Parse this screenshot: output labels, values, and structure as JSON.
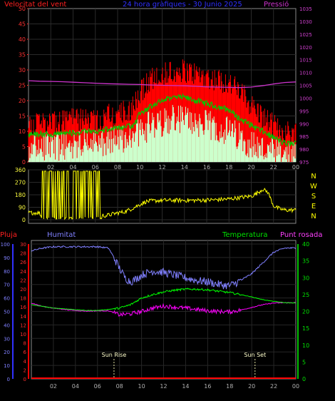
{
  "header": {
    "title": "24 hora gràfiques - 30 Junio 2025",
    "left_label": "Velocitat del vent",
    "right_label": "Pressió"
  },
  "colors": {
    "wind_max": "#ff0000",
    "wind_avg": "#00c800",
    "wind_min": "#ccffcc",
    "pressure": "#cc33cc",
    "direction": "#ffff00",
    "humidity": "#8080ff",
    "temperature": "#00ff00",
    "dewpoint": "#ff00ff",
    "rain": "#ff0000",
    "axis_left": "#ff0000",
    "axis_right": "#cc00cc",
    "axis_dir": "#ffff00",
    "axis_hum": "#3030ff",
    "axis_temp": "#00c000"
  },
  "chart_data": [
    {
      "type": "line",
      "name": "wind-pressure",
      "x_ticks": [
        "02",
        "04",
        "06",
        "08",
        "10",
        "12",
        "14",
        "16",
        "18",
        "20",
        "22",
        "00"
      ],
      "y_left": {
        "label": "Velocitat del vent",
        "ticks": [
          0,
          5,
          10,
          15,
          20,
          25,
          30,
          35,
          40,
          45,
          50
        ],
        "range": [
          0,
          50
        ]
      },
      "y_right": {
        "label": "Pressió",
        "ticks": [
          975,
          980,
          985,
          990,
          995,
          1000,
          1005,
          1010,
          1015,
          1020,
          1025,
          1030,
          1035
        ],
        "range": [
          975,
          1035
        ]
      },
      "pressure_points": [
        [
          0,
          1006.8
        ],
        [
          1,
          1006.6
        ],
        [
          2,
          1006.5
        ],
        [
          3,
          1006.4
        ],
        [
          4,
          1006.2
        ],
        [
          5,
          1006.0
        ],
        [
          6,
          1005.8
        ],
        [
          7,
          1005.6
        ],
        [
          8,
          1005.5
        ],
        [
          9,
          1005.4
        ],
        [
          10,
          1005.3
        ],
        [
          11,
          1005.1
        ],
        [
          12,
          1005.0
        ],
        [
          13,
          1004.9
        ],
        [
          14,
          1004.8
        ],
        [
          15,
          1004.6
        ],
        [
          16,
          1004.4
        ],
        [
          17,
          1004.3
        ],
        [
          18,
          1004.2
        ],
        [
          19,
          1004.1
        ],
        [
          20,
          1004.3
        ],
        [
          21,
          1004.8
        ],
        [
          22,
          1005.5
        ],
        [
          23,
          1006.1
        ],
        [
          24,
          1006.3
        ]
      ],
      "wind_max_profile": [
        [
          0,
          11
        ],
        [
          2,
          12
        ],
        [
          4,
          13
        ],
        [
          6,
          13
        ],
        [
          8,
          15
        ],
        [
          9.5,
          17
        ],
        [
          10,
          22
        ],
        [
          11,
          26
        ],
        [
          12,
          28
        ],
        [
          13,
          29
        ],
        [
          14,
          29
        ],
        [
          15,
          28
        ],
        [
          16,
          27
        ],
        [
          17,
          26
        ],
        [
          18,
          25
        ],
        [
          19,
          22
        ],
        [
          20,
          18
        ],
        [
          21,
          14
        ],
        [
          22,
          11
        ],
        [
          23,
          9
        ],
        [
          24,
          9
        ]
      ],
      "wind_avg_profile": [
        [
          0,
          9
        ],
        [
          2,
          9
        ],
        [
          4,
          9.5
        ],
        [
          6,
          10
        ],
        [
          8,
          11
        ],
        [
          9.5,
          12
        ],
        [
          10,
          16
        ],
        [
          11,
          18
        ],
        [
          12,
          20
        ],
        [
          13,
          21
        ],
        [
          14,
          21
        ],
        [
          15,
          20
        ],
        [
          16,
          19
        ],
        [
          17,
          18
        ],
        [
          18,
          17
        ],
        [
          19,
          14
        ],
        [
          20,
          12
        ],
        [
          21,
          10
        ],
        [
          22,
          8
        ],
        [
          23,
          6
        ],
        [
          24,
          6
        ]
      ],
      "wind_min_profile": [
        [
          0,
          5
        ],
        [
          2,
          5
        ],
        [
          4,
          5.5
        ],
        [
          6,
          6
        ],
        [
          8,
          7
        ],
        [
          9.5,
          8
        ],
        [
          10,
          10
        ],
        [
          11,
          12
        ],
        [
          12,
          13
        ],
        [
          13,
          14
        ],
        [
          14,
          14
        ],
        [
          15,
          13
        ],
        [
          16,
          12
        ],
        [
          17,
          11
        ],
        [
          18,
          10
        ],
        [
          19,
          8
        ],
        [
          20,
          6
        ],
        [
          21,
          4
        ],
        [
          22,
          3
        ],
        [
          23,
          2
        ],
        [
          24,
          2
        ]
      ]
    },
    {
      "type": "line",
      "name": "wind-direction",
      "y_ticks": [
        0,
        90,
        180,
        270,
        360
      ],
      "y_range": [
        0,
        360
      ],
      "compass_labels": [
        "N",
        "W",
        "S",
        "E",
        "N"
      ],
      "points": [
        [
          0,
          50
        ],
        [
          1,
          50
        ],
        [
          1.2,
          10
        ],
        [
          1.5,
          10
        ],
        [
          1.7,
          330
        ],
        [
          2,
          340
        ],
        [
          2.2,
          10
        ],
        [
          2.5,
          350
        ],
        [
          3,
          20
        ],
        [
          3.5,
          350
        ],
        [
          4,
          350
        ],
        [
          4.4,
          10
        ],
        [
          4.6,
          355
        ],
        [
          5,
          20
        ],
        [
          5.2,
          350
        ],
        [
          5.6,
          10
        ],
        [
          6,
          350
        ],
        [
          6.2,
          10
        ],
        [
          6.5,
          30
        ],
        [
          7,
          30
        ],
        [
          7.5,
          40
        ],
        [
          8,
          50
        ],
        [
          8.5,
          55
        ],
        [
          9,
          70
        ],
        [
          9.5,
          90
        ],
        [
          10,
          110
        ],
        [
          10.5,
          130
        ],
        [
          11,
          135
        ],
        [
          12,
          140
        ],
        [
          13,
          140
        ],
        [
          14,
          140
        ],
        [
          15,
          140
        ],
        [
          16,
          142
        ],
        [
          17,
          145
        ],
        [
          18,
          150
        ],
        [
          19,
          160
        ],
        [
          20,
          170
        ],
        [
          20.5,
          190
        ],
        [
          21,
          220
        ],
        [
          21.5,
          200
        ],
        [
          22,
          100
        ],
        [
          22.5,
          80
        ],
        [
          23,
          70
        ],
        [
          24,
          70
        ]
      ]
    },
    {
      "type": "line",
      "name": "humidity-temperature",
      "x_ticks": [
        "02",
        "04",
        "06",
        "08",
        "10",
        "12",
        "14",
        "16",
        "18",
        "20",
        "22",
        "00"
      ],
      "y_rain": {
        "label": "Pluja",
        "ticks": [
          0,
          2,
          4,
          6,
          8,
          10,
          12,
          14,
          16,
          18,
          20,
          22,
          24,
          26,
          28,
          30
        ],
        "range": [
          0,
          30
        ]
      },
      "y_humidity": {
        "label": "Humitat",
        "ticks": [
          0,
          10,
          20,
          30,
          40,
          50,
          60,
          70,
          80,
          90,
          100
        ],
        "range": [
          0,
          100
        ]
      },
      "y_temperature": {
        "label": "Temperatura",
        "ticks": [
          0,
          5,
          10,
          15,
          20,
          25,
          30,
          35,
          40
        ],
        "range": [
          0,
          40
        ]
      },
      "dew_label": "Punt rosada",
      "humidity": [
        [
          0,
          95
        ],
        [
          1,
          97
        ],
        [
          2,
          98
        ],
        [
          3,
          98
        ],
        [
          4,
          98
        ],
        [
          5,
          98
        ],
        [
          6,
          98
        ],
        [
          7,
          97
        ],
        [
          7.5,
          90
        ],
        [
          8,
          82
        ],
        [
          8.5,
          75
        ],
        [
          9,
          72
        ],
        [
          9.5,
          74
        ],
        [
          10,
          77
        ],
        [
          11,
          80
        ],
        [
          12,
          79
        ],
        [
          13,
          77
        ],
        [
          14,
          75
        ],
        [
          15,
          73
        ],
        [
          16,
          72
        ],
        [
          17,
          70
        ],
        [
          18,
          69
        ],
        [
          19,
          73
        ],
        [
          20,
          78
        ],
        [
          21,
          86
        ],
        [
          22,
          94
        ],
        [
          23,
          97
        ],
        [
          24,
          97
        ]
      ],
      "temperature": [
        [
          0,
          22
        ],
        [
          1,
          21.5
        ],
        [
          2,
          21
        ],
        [
          3,
          20.8
        ],
        [
          4,
          20.5
        ],
        [
          5,
          20.3
        ],
        [
          6,
          20.3
        ],
        [
          7,
          20.6
        ],
        [
          8,
          21
        ],
        [
          9,
          22
        ],
        [
          10,
          24
        ],
        [
          11,
          25
        ],
        [
          12,
          25.8
        ],
        [
          13,
          26.3
        ],
        [
          14,
          26.6
        ],
        [
          15,
          26.6
        ],
        [
          16,
          26.4
        ],
        [
          17,
          26.0
        ],
        [
          18,
          25.6
        ],
        [
          19,
          25
        ],
        [
          20,
          24.3
        ],
        [
          21,
          23.5
        ],
        [
          22,
          23
        ],
        [
          23,
          22.6
        ],
        [
          24,
          22.5
        ]
      ],
      "dewpoint": [
        [
          0,
          22.5
        ],
        [
          1,
          21.5
        ],
        [
          2,
          21
        ],
        [
          3,
          20.6
        ],
        [
          4,
          20.3
        ],
        [
          5,
          20.1
        ],
        [
          6,
          20.2
        ],
        [
          7,
          20.2
        ],
        [
          8,
          19
        ],
        [
          9,
          19.3
        ],
        [
          10,
          20
        ],
        [
          11,
          21
        ],
        [
          12,
          21.6
        ],
        [
          13,
          21.3
        ],
        [
          14,
          21
        ],
        [
          15,
          20.6
        ],
        [
          16,
          20.2
        ],
        [
          17,
          20
        ],
        [
          18,
          19.9
        ],
        [
          19,
          20.4
        ],
        [
          20,
          21.2
        ],
        [
          21,
          22
        ],
        [
          22,
          22.5
        ],
        [
          23,
          22.6
        ],
        [
          24,
          22.6
        ]
      ],
      "rain": [
        [
          0,
          0
        ],
        [
          24,
          0
        ]
      ],
      "annotations": [
        {
          "label": "Sun Rise",
          "x": 7.5
        },
        {
          "label": "Sun Set",
          "x": 20.3
        }
      ]
    }
  ]
}
